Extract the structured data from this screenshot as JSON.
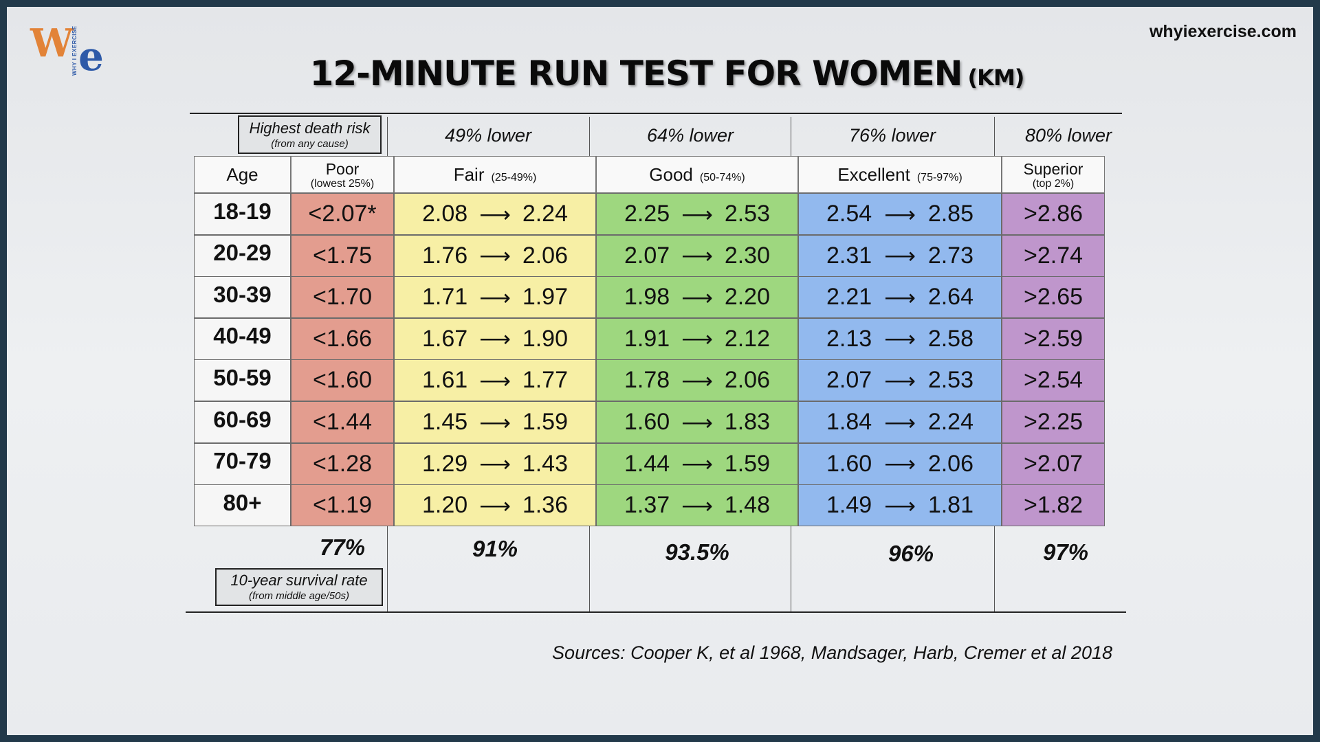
{
  "site": "whyiexercise.com",
  "logo": {
    "w": "W",
    "e": "e",
    "side_text": "WHY I EXERCISE"
  },
  "title": {
    "main": "12-MINUTE RUN TEST FOR WOMEN",
    "unit": "(KM)"
  },
  "risk_label": {
    "main": "Highest death risk",
    "sub": "(from any cause)"
  },
  "risk_reductions": [
    "49% lower",
    "64% lower",
    "76% lower",
    "80% lower"
  ],
  "columns": {
    "age": "Age",
    "poor": {
      "name": "Poor",
      "sub": "(lowest 25%)"
    },
    "fair": {
      "name": "Fair",
      "range": "(25-49%)"
    },
    "good": {
      "name": "Good",
      "range": "(50-74%)"
    },
    "excellent": {
      "name": "Excellent",
      "range": "(75-97%)"
    },
    "superior": {
      "name": "Superior",
      "sub": "(top 2%)"
    }
  },
  "arrow": "⟶",
  "rows": [
    {
      "age": "18-19",
      "poor": "<2.07*",
      "fair": [
        "2.08",
        "2.24"
      ],
      "good": [
        "2.25",
        "2.53"
      ],
      "excellent": [
        "2.54",
        "2.85"
      ],
      "superior": ">2.86"
    },
    {
      "age": "20-29",
      "poor": "<1.75",
      "fair": [
        "1.76",
        "2.06"
      ],
      "good": [
        "2.07",
        "2.30"
      ],
      "excellent": [
        "2.31",
        "2.73"
      ],
      "superior": ">2.74"
    },
    {
      "age": "30-39",
      "poor": "<1.70",
      "fair": [
        "1.71",
        "1.97"
      ],
      "good": [
        "1.98",
        "2.20"
      ],
      "excellent": [
        "2.21",
        "2.64"
      ],
      "superior": ">2.65"
    },
    {
      "age": "40-49",
      "poor": "<1.66",
      "fair": [
        "1.67",
        "1.90"
      ],
      "good": [
        "1.91",
        "2.12"
      ],
      "excellent": [
        "2.13",
        "2.58"
      ],
      "superior": ">2.59"
    },
    {
      "age": "50-59",
      "poor": "<1.60",
      "fair": [
        "1.61",
        "1.77"
      ],
      "good": [
        "1.78",
        "2.06"
      ],
      "excellent": [
        "2.07",
        "2.53"
      ],
      "superior": ">2.54"
    },
    {
      "age": "60-69",
      "poor": "<1.44",
      "fair": [
        "1.45",
        "1.59"
      ],
      "good": [
        "1.60",
        "1.83"
      ],
      "excellent": [
        "1.84",
        "2.24"
      ],
      "superior": ">2.25"
    },
    {
      "age": "70-79",
      "poor": "<1.28",
      "fair": [
        "1.29",
        "1.43"
      ],
      "good": [
        "1.44",
        "1.59"
      ],
      "excellent": [
        "1.60",
        "2.06"
      ],
      "superior": ">2.07"
    },
    {
      "age": "80+",
      "poor": "<1.19",
      "fair": [
        "1.20",
        "1.36"
      ],
      "good": [
        "1.37",
        "1.48"
      ],
      "excellent": [
        "1.49",
        "1.81"
      ],
      "superior": ">1.82"
    }
  ],
  "survival_rates": [
    "77%",
    "91%",
    "93.5%",
    "96%",
    "97%"
  ],
  "survival_label": {
    "main": "10-year survival rate",
    "sub": "(from middle age/50s)"
  },
  "sources": "Sources:  Cooper K, et al 1968, Mandsager, Harb, Cremer et al 2018",
  "colors": {
    "poor": "#e39d8f",
    "fair": "#f7efa5",
    "good": "#9ed77f",
    "excellent": "#92b9ee",
    "superior": "#bf96cc",
    "frame": "#22394a"
  }
}
